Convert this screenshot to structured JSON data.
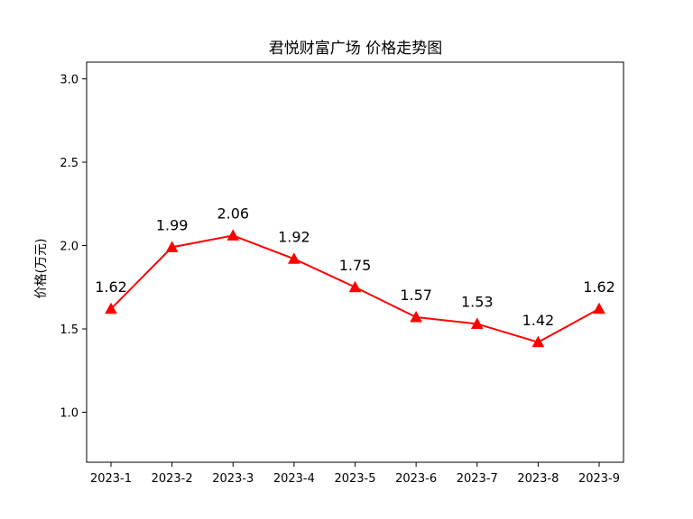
{
  "chart_data": {
    "type": "line",
    "title": "君悦财富广场 价格走势图",
    "xlabel": "",
    "ylabel": "价格(万元)",
    "categories": [
      "2023-1",
      "2023-2",
      "2023-3",
      "2023-4",
      "2023-5",
      "2023-6",
      "2023-7",
      "2023-8",
      "2023-9"
    ],
    "series": [
      {
        "values": [
          1.62,
          1.99,
          2.06,
          1.92,
          1.75,
          1.57,
          1.53,
          1.42,
          1.62
        ],
        "color": "#ff0000",
        "marker": "triangle"
      }
    ],
    "data_labels": [
      "1.62",
      "1.99",
      "2.06",
      "1.92",
      "1.75",
      "1.57",
      "1.53",
      "1.42",
      "1.62"
    ],
    "yticks": [
      1.0,
      1.5,
      2.0,
      2.5,
      3.0
    ],
    "ytick_labels": [
      "1.0",
      "1.5",
      "2.0",
      "2.5",
      "3.0"
    ],
    "ylim": [
      0.7,
      3.1
    ],
    "grid": false,
    "legend": false
  }
}
